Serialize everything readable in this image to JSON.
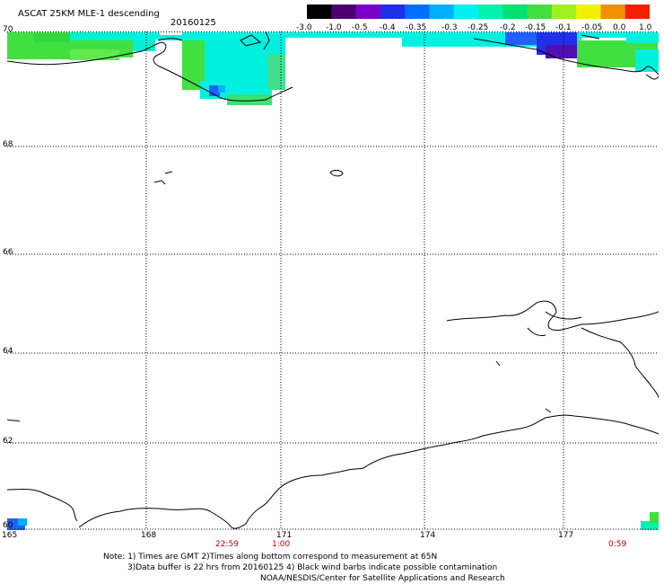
{
  "header": {
    "product": "ASCAT 25KM MLE-1 descending",
    "date": "20160125"
  },
  "colorbar": {
    "labels": [
      "-3.0",
      "-1.0",
      "-0.5",
      "-0.4",
      "-0.35",
      "-0.3",
      "-0.25",
      "-0.2",
      "-0.15",
      "-0.1",
      "-0.05",
      "0.0",
      "1.0"
    ],
    "colors": [
      "#000000",
      "#4b006e",
      "#7a00c8",
      "#2030e8",
      "#0070ff",
      "#00b0ff",
      "#00f0f0",
      "#00f0b0",
      "#00e070",
      "#40e040",
      "#a0f020",
      "#f0f000",
      "#f09000",
      "#f02000"
    ]
  },
  "axes": {
    "lat_labels": [
      "70",
      "68",
      "66",
      "64",
      "62",
      "60"
    ],
    "lon_labels": [
      "165",
      "168",
      "171",
      "174",
      "177"
    ]
  },
  "time_labels": [
    "22:59",
    "1:00",
    "0:59"
  ],
  "notes": [
    "Note: 1) Times are GMT 2)Times along bottom correspond to measurement at 65N",
    "3)Data buffer is 22 hrs from 20160125 4) Black wind barbs indicate possible contamination",
    "NOAA/NESDIS/Center for Satellite Applications and Research"
  ],
  "colors": {
    "swath_green": "#40e040",
    "swath_cyan": "#00f0e0",
    "swath_blue": "#2060ff",
    "swath_purple": "#5010b0",
    "time_label": "#c00000"
  }
}
